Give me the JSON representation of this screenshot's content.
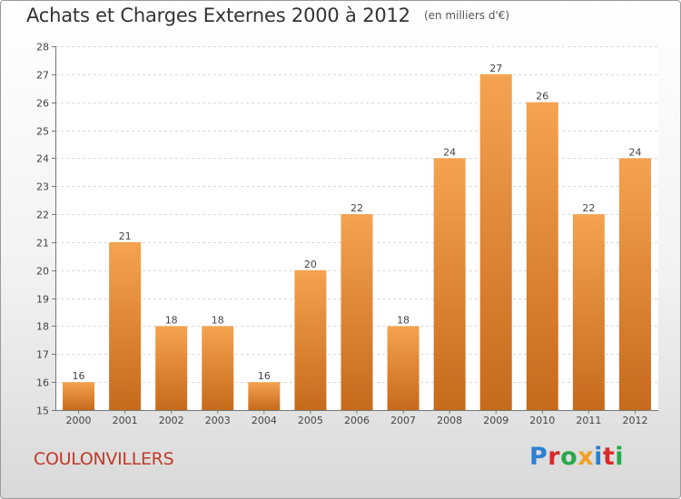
{
  "header": {
    "title": "Achats et Charges Externes 2000 à 2012",
    "subtitle": "(en milliers d'€)"
  },
  "footer": {
    "place": "COULONVILLERS",
    "logo_text": "Proxiti"
  },
  "colors": {
    "bar_top": "#f5a350",
    "bar_bottom": "#c66a1c",
    "place": "#c0392b",
    "logo": [
      "#2a7fd4",
      "#d92b2b",
      "#2aa84a",
      "#f0a020",
      "#2a7fd4",
      "#d92b2b",
      "#2aa84a"
    ]
  },
  "chart_data": {
    "type": "bar",
    "title": "Achats et Charges Externes 2000 à 2012",
    "subtitle": "(en milliers d'€)",
    "categories": [
      "2000",
      "2001",
      "2002",
      "2003",
      "2004",
      "2005",
      "2006",
      "2007",
      "2008",
      "2009",
      "2010",
      "2011",
      "2012"
    ],
    "values": [
      16,
      21,
      18,
      18,
      16,
      20,
      22,
      18,
      24,
      27,
      26,
      22,
      24
    ],
    "ylim": [
      15,
      28
    ],
    "yticks": [
      15,
      16,
      17,
      18,
      19,
      20,
      21,
      22,
      23,
      24,
      25,
      26,
      27,
      28
    ],
    "grid": true,
    "data_labels": true
  }
}
